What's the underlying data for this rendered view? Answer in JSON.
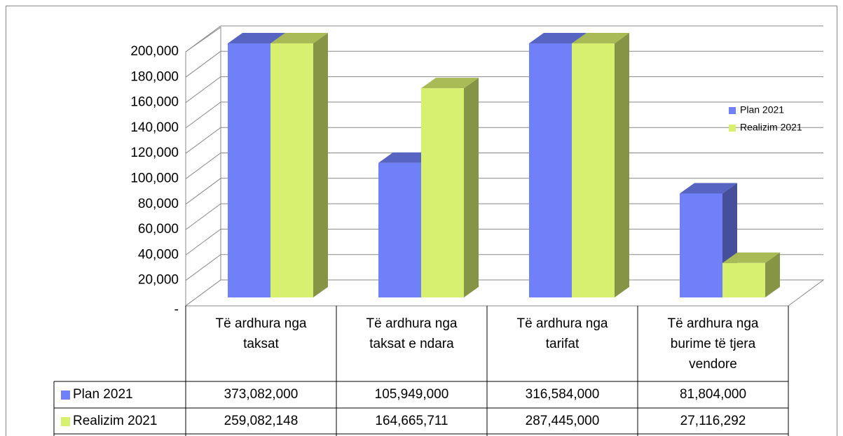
{
  "chart_data": {
    "type": "bar3d",
    "categories": [
      "Të ardhura nga taksat",
      "Të ardhura nga taksat e ndara",
      "Të ardhura nga tarifat",
      "Të ardhura nga burime të tjera vendore"
    ],
    "series": [
      {
        "name": "Plan 2021",
        "color": "#7080f8",
        "values": [
          373082,
          105949,
          316584,
          81804
        ],
        "value_labels": [
          "373,082,000",
          "105,949,000",
          "316,584,000",
          "81,804,000"
        ]
      },
      {
        "name": "Realizim 2021",
        "color": "#d8f070",
        "values": [
          259082.148,
          164665.711,
          287445,
          27116.292
        ],
        "value_labels": [
          "259,082,148",
          "164,665,711",
          "287,445,000",
          "27,116,292"
        ]
      }
    ],
    "ylim": [
      0,
      200000
    ],
    "yticks": [
      {
        "value": 0,
        "label": "-"
      },
      {
        "value": 20000,
        "label": "20,000"
      },
      {
        "value": 40000,
        "label": "40,000"
      },
      {
        "value": 60000,
        "label": "60,000"
      },
      {
        "value": 80000,
        "label": "80,000"
      },
      {
        "value": 100000,
        "label": "100,000"
      },
      {
        "value": 120000,
        "label": "120,000"
      },
      {
        "value": 140000,
        "label": "140,000"
      },
      {
        "value": 160000,
        "label": "160,000"
      },
      {
        "value": 180000,
        "label": "180,000"
      },
      {
        "value": 200000,
        "label": "200,000"
      }
    ],
    "grid": true,
    "legend": "right",
    "data_table": true
  }
}
